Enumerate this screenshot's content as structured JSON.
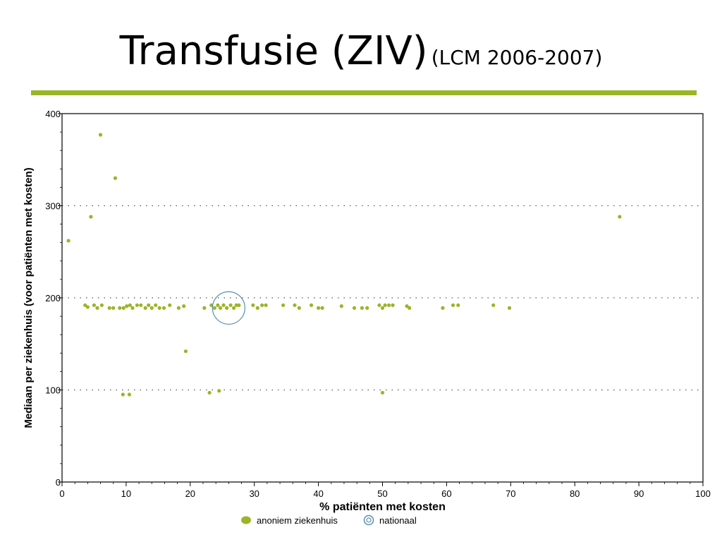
{
  "slide": {
    "title": "Transfusie (ZIV)",
    "subtitle": "(LCM 2006-2007)",
    "accent_color": "#9ab526"
  },
  "chart_data": {
    "type": "scatter",
    "xlabel": "% patiënten met kosten",
    "ylabel": "Mediaan per ziekenhuis (voor patiënten met kosten)",
    "xlim": [
      0,
      100
    ],
    "ylim": [
      0,
      400
    ],
    "x_ticks": [
      0,
      10,
      20,
      30,
      40,
      50,
      60,
      70,
      80,
      90,
      100
    ],
    "y_ticks": [
      0,
      100,
      200,
      300,
      400
    ],
    "grid": "horizontal dotted at 100, 200, 300",
    "legend_placement": "bottom",
    "series": [
      {
        "name": "anoniem ziekenhuis",
        "color": "#9ab526",
        "marker": "dot",
        "points": [
          [
            1.0,
            262
          ],
          [
            4.5,
            288
          ],
          [
            6.0,
            377
          ],
          [
            8.3,
            330
          ],
          [
            87.0,
            288
          ],
          [
            19.3,
            142
          ],
          [
            9.5,
            95
          ],
          [
            10.5,
            95
          ],
          [
            23.0,
            97
          ],
          [
            24.5,
            99
          ],
          [
            50.0,
            97
          ],
          [
            3.6,
            192
          ],
          [
            4.0,
            190
          ],
          [
            5.0,
            192
          ],
          [
            5.5,
            189
          ],
          [
            6.2,
            192
          ],
          [
            7.4,
            189
          ],
          [
            8.0,
            189
          ],
          [
            9.0,
            189
          ],
          [
            9.6,
            189
          ],
          [
            10.1,
            191
          ],
          [
            10.6,
            192
          ],
          [
            11.0,
            189
          ],
          [
            11.7,
            192
          ],
          [
            12.3,
            192
          ],
          [
            13.0,
            189
          ],
          [
            13.5,
            192
          ],
          [
            14.0,
            189
          ],
          [
            14.6,
            192
          ],
          [
            15.2,
            189
          ],
          [
            15.9,
            189
          ],
          [
            16.8,
            192
          ],
          [
            18.2,
            189
          ],
          [
            19.0,
            191
          ],
          [
            22.2,
            189
          ],
          [
            23.3,
            192
          ],
          [
            23.8,
            189
          ],
          [
            24.3,
            192
          ],
          [
            24.7,
            189
          ],
          [
            25.2,
            192
          ],
          [
            25.7,
            189
          ],
          [
            26.3,
            192
          ],
          [
            26.8,
            189
          ],
          [
            27.2,
            192
          ],
          [
            27.6,
            192
          ],
          [
            29.8,
            192
          ],
          [
            30.5,
            189
          ],
          [
            31.2,
            192
          ],
          [
            31.8,
            192
          ],
          [
            34.5,
            192
          ],
          [
            36.3,
            192
          ],
          [
            37.0,
            189
          ],
          [
            38.9,
            192
          ],
          [
            40.0,
            189
          ],
          [
            40.6,
            189
          ],
          [
            43.6,
            191
          ],
          [
            45.6,
            189
          ],
          [
            46.8,
            189
          ],
          [
            47.6,
            189
          ],
          [
            49.5,
            192
          ],
          [
            50.0,
            189
          ],
          [
            50.4,
            192
          ],
          [
            51.0,
            192
          ],
          [
            51.6,
            192
          ],
          [
            53.8,
            191
          ],
          [
            54.2,
            189
          ],
          [
            59.4,
            189
          ],
          [
            61.0,
            192
          ],
          [
            61.8,
            192
          ],
          [
            67.3,
            192
          ],
          [
            69.8,
            189
          ]
        ]
      },
      {
        "name": "nationaal",
        "color": "#5b8fb0",
        "marker": "circle",
        "points": [
          [
            26.0,
            189
          ]
        ]
      }
    ]
  }
}
